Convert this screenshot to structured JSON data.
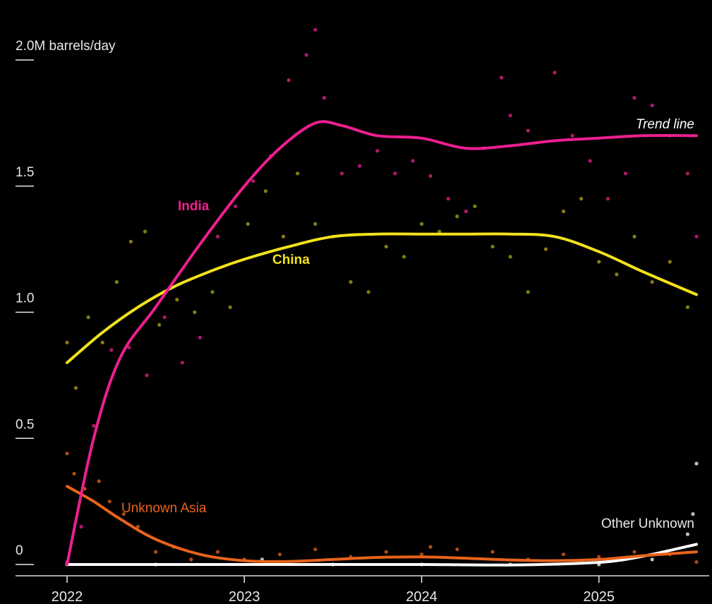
{
  "chart_data": {
    "type": "scatter",
    "y_unit_label": "2.0M barrels/day",
    "y_ticks": [
      {
        "value": 2.0,
        "label": "2.0M barrels/day"
      },
      {
        "value": 1.5,
        "label": "1.5"
      },
      {
        "value": 1.0,
        "label": "1.0"
      },
      {
        "value": 0.5,
        "label": "0.5"
      },
      {
        "value": 0,
        "label": "0"
      }
    ],
    "x_ticks": [
      {
        "value": 2022,
        "label": "2022"
      },
      {
        "value": 2023,
        "label": "2023"
      },
      {
        "value": 2024,
        "label": "2024"
      },
      {
        "value": 2025,
        "label": "2025"
      }
    ],
    "xlim": [
      2022,
      2025.55
    ],
    "ylim": [
      0,
      2.0
    ],
    "grid": false,
    "trend_label": "Trend line",
    "colors": {
      "India": "#ec1f8f",
      "China": "#f2e21b",
      "Unknown Asia": "#e8631b",
      "Other Unknown": "#ffffff"
    },
    "series": [
      {
        "name": "India",
        "trend": [
          {
            "x": 2022.0,
            "y": 0.0
          },
          {
            "x": 2022.15,
            "y": 0.5
          },
          {
            "x": 2022.3,
            "y": 0.82
          },
          {
            "x": 2022.5,
            "y": 1.02
          },
          {
            "x": 2022.75,
            "y": 1.27
          },
          {
            "x": 2023.0,
            "y": 1.5
          },
          {
            "x": 2023.2,
            "y": 1.65
          },
          {
            "x": 2023.4,
            "y": 1.75
          },
          {
            "x": 2023.55,
            "y": 1.74
          },
          {
            "x": 2023.75,
            "y": 1.7
          },
          {
            "x": 2024.0,
            "y": 1.69
          },
          {
            "x": 2024.25,
            "y": 1.65
          },
          {
            "x": 2024.5,
            "y": 1.66
          },
          {
            "x": 2024.75,
            "y": 1.68
          },
          {
            "x": 2025.0,
            "y": 1.69
          },
          {
            "x": 2025.25,
            "y": 1.7
          },
          {
            "x": 2025.55,
            "y": 1.7
          }
        ],
        "points": [
          {
            "x": 2022.0,
            "y": 0.01
          },
          {
            "x": 2022.08,
            "y": 0.15
          },
          {
            "x": 2022.15,
            "y": 0.55
          },
          {
            "x": 2022.25,
            "y": 0.85
          },
          {
            "x": 2022.35,
            "y": 0.86
          },
          {
            "x": 2022.45,
            "y": 0.75
          },
          {
            "x": 2022.55,
            "y": 0.98
          },
          {
            "x": 2022.65,
            "y": 0.8
          },
          {
            "x": 2022.75,
            "y": 0.9
          },
          {
            "x": 2022.85,
            "y": 1.3
          },
          {
            "x": 2022.95,
            "y": 1.42
          },
          {
            "x": 2023.05,
            "y": 1.52
          },
          {
            "x": 2023.15,
            "y": 1.62
          },
          {
            "x": 2023.25,
            "y": 1.92
          },
          {
            "x": 2023.35,
            "y": 2.02
          },
          {
            "x": 2023.4,
            "y": 2.12
          },
          {
            "x": 2023.45,
            "y": 1.85
          },
          {
            "x": 2023.55,
            "y": 1.55
          },
          {
            "x": 2023.65,
            "y": 1.58
          },
          {
            "x": 2023.75,
            "y": 1.64
          },
          {
            "x": 2023.85,
            "y": 1.55
          },
          {
            "x": 2023.95,
            "y": 1.6
          },
          {
            "x": 2024.05,
            "y": 1.54
          },
          {
            "x": 2024.15,
            "y": 1.45
          },
          {
            "x": 2024.25,
            "y": 1.4
          },
          {
            "x": 2024.35,
            "y": 1.65
          },
          {
            "x": 2024.45,
            "y": 1.93
          },
          {
            "x": 2024.5,
            "y": 1.78
          },
          {
            "x": 2024.6,
            "y": 1.72
          },
          {
            "x": 2024.75,
            "y": 1.95
          },
          {
            "x": 2024.85,
            "y": 1.7
          },
          {
            "x": 2024.95,
            "y": 1.6
          },
          {
            "x": 2025.05,
            "y": 1.45
          },
          {
            "x": 2025.15,
            "y": 1.55
          },
          {
            "x": 2025.2,
            "y": 1.85
          },
          {
            "x": 2025.3,
            "y": 1.82
          },
          {
            "x": 2025.4,
            "y": 1.7
          },
          {
            "x": 2025.5,
            "y": 1.55
          },
          {
            "x": 2025.55,
            "y": 1.3
          }
        ]
      },
      {
        "name": "China",
        "trend": [
          {
            "x": 2022.0,
            "y": 0.8
          },
          {
            "x": 2022.2,
            "y": 0.92
          },
          {
            "x": 2022.4,
            "y": 1.02
          },
          {
            "x": 2022.6,
            "y": 1.1
          },
          {
            "x": 2022.8,
            "y": 1.16
          },
          {
            "x": 2023.0,
            "y": 1.21
          },
          {
            "x": 2023.25,
            "y": 1.26
          },
          {
            "x": 2023.5,
            "y": 1.3
          },
          {
            "x": 2023.75,
            "y": 1.31
          },
          {
            "x": 2024.0,
            "y": 1.31
          },
          {
            "x": 2024.25,
            "y": 1.31
          },
          {
            "x": 2024.5,
            "y": 1.31
          },
          {
            "x": 2024.75,
            "y": 1.3
          },
          {
            "x": 2025.0,
            "y": 1.24
          },
          {
            "x": 2025.25,
            "y": 1.16
          },
          {
            "x": 2025.55,
            "y": 1.07
          }
        ],
        "points": [
          {
            "x": 2022.0,
            "y": 0.88
          },
          {
            "x": 2022.05,
            "y": 0.7
          },
          {
            "x": 2022.12,
            "y": 0.98
          },
          {
            "x": 2022.2,
            "y": 0.88
          },
          {
            "x": 2022.28,
            "y": 1.12
          },
          {
            "x": 2022.36,
            "y": 1.28
          },
          {
            "x": 2022.44,
            "y": 1.32
          },
          {
            "x": 2022.52,
            "y": 0.95
          },
          {
            "x": 2022.62,
            "y": 1.05
          },
          {
            "x": 2022.72,
            "y": 1.0
          },
          {
            "x": 2022.82,
            "y": 1.08
          },
          {
            "x": 2022.92,
            "y": 1.02
          },
          {
            "x": 2023.02,
            "y": 1.35
          },
          {
            "x": 2023.12,
            "y": 1.48
          },
          {
            "x": 2023.22,
            "y": 1.3
          },
          {
            "x": 2023.3,
            "y": 1.55
          },
          {
            "x": 2023.4,
            "y": 1.35
          },
          {
            "x": 2023.5,
            "y": 1.3
          },
          {
            "x": 2023.6,
            "y": 1.12
          },
          {
            "x": 2023.7,
            "y": 1.08
          },
          {
            "x": 2023.8,
            "y": 1.26
          },
          {
            "x": 2023.9,
            "y": 1.22
          },
          {
            "x": 2024.0,
            "y": 1.35
          },
          {
            "x": 2024.1,
            "y": 1.32
          },
          {
            "x": 2024.2,
            "y": 1.38
          },
          {
            "x": 2024.3,
            "y": 1.42
          },
          {
            "x": 2024.4,
            "y": 1.26
          },
          {
            "x": 2024.5,
            "y": 1.22
          },
          {
            "x": 2024.6,
            "y": 1.08
          },
          {
            "x": 2024.7,
            "y": 1.25
          },
          {
            "x": 2024.8,
            "y": 1.4
          },
          {
            "x": 2024.9,
            "y": 1.45
          },
          {
            "x": 2025.0,
            "y": 1.2
          },
          {
            "x": 2025.1,
            "y": 1.15
          },
          {
            "x": 2025.2,
            "y": 1.3
          },
          {
            "x": 2025.3,
            "y": 1.12
          },
          {
            "x": 2025.4,
            "y": 1.2
          },
          {
            "x": 2025.5,
            "y": 1.02
          }
        ]
      },
      {
        "name": "Unknown Asia",
        "trend": [
          {
            "x": 2022.0,
            "y": 0.31
          },
          {
            "x": 2022.15,
            "y": 0.25
          },
          {
            "x": 2022.3,
            "y": 0.18
          },
          {
            "x": 2022.5,
            "y": 0.1
          },
          {
            "x": 2022.75,
            "y": 0.04
          },
          {
            "x": 2023.0,
            "y": 0.015
          },
          {
            "x": 2023.25,
            "y": 0.012
          },
          {
            "x": 2023.5,
            "y": 0.02
          },
          {
            "x": 2023.75,
            "y": 0.028
          },
          {
            "x": 2024.0,
            "y": 0.03
          },
          {
            "x": 2024.25,
            "y": 0.025
          },
          {
            "x": 2024.5,
            "y": 0.018
          },
          {
            "x": 2024.75,
            "y": 0.015
          },
          {
            "x": 2025.0,
            "y": 0.02
          },
          {
            "x": 2025.25,
            "y": 0.035
          },
          {
            "x": 2025.55,
            "y": 0.05
          }
        ],
        "points": [
          {
            "x": 2022.0,
            "y": 0.44
          },
          {
            "x": 2022.04,
            "y": 0.36
          },
          {
            "x": 2022.1,
            "y": 0.3
          },
          {
            "x": 2022.18,
            "y": 0.33
          },
          {
            "x": 2022.24,
            "y": 0.25
          },
          {
            "x": 2022.32,
            "y": 0.2
          },
          {
            "x": 2022.4,
            "y": 0.15
          },
          {
            "x": 2022.5,
            "y": 0.05
          },
          {
            "x": 2022.6,
            "y": 0.07
          },
          {
            "x": 2022.7,
            "y": 0.02
          },
          {
            "x": 2022.85,
            "y": 0.05
          },
          {
            "x": 2023.0,
            "y": 0.02
          },
          {
            "x": 2023.2,
            "y": 0.04
          },
          {
            "x": 2023.4,
            "y": 0.06
          },
          {
            "x": 2023.6,
            "y": 0.03
          },
          {
            "x": 2023.8,
            "y": 0.05
          },
          {
            "x": 2024.0,
            "y": 0.04
          },
          {
            "x": 2024.05,
            "y": 0.07
          },
          {
            "x": 2024.2,
            "y": 0.06
          },
          {
            "x": 2024.4,
            "y": 0.05
          },
          {
            "x": 2024.6,
            "y": 0.02
          },
          {
            "x": 2024.8,
            "y": 0.04
          },
          {
            "x": 2025.0,
            "y": 0.03
          },
          {
            "x": 2025.2,
            "y": 0.05
          },
          {
            "x": 2025.4,
            "y": 0.04
          },
          {
            "x": 2025.55,
            "y": 0.01
          }
        ]
      },
      {
        "name": "Other Unknown",
        "trend": [
          {
            "x": 2022.0,
            "y": 0.0
          },
          {
            "x": 2022.5,
            "y": 0.0
          },
          {
            "x": 2023.0,
            "y": 0.0
          },
          {
            "x": 2023.5,
            "y": 0.0
          },
          {
            "x": 2024.0,
            "y": 0.0
          },
          {
            "x": 2024.5,
            "y": -0.002
          },
          {
            "x": 2024.9,
            "y": 0.005
          },
          {
            "x": 2025.1,
            "y": 0.015
          },
          {
            "x": 2025.3,
            "y": 0.04
          },
          {
            "x": 2025.55,
            "y": 0.08
          }
        ],
        "points": [
          {
            "x": 2022.0,
            "y": 0.0
          },
          {
            "x": 2022.5,
            "y": 0.0
          },
          {
            "x": 2023.1,
            "y": 0.02
          },
          {
            "x": 2023.5,
            "y": 0.0
          },
          {
            "x": 2024.0,
            "y": 0.0
          },
          {
            "x": 2024.5,
            "y": 0.0
          },
          {
            "x": 2025.0,
            "y": 0.0
          },
          {
            "x": 2025.3,
            "y": 0.02
          },
          {
            "x": 2025.5,
            "y": 0.12
          },
          {
            "x": 2025.53,
            "y": 0.2
          },
          {
            "x": 2025.55,
            "y": 0.4
          }
        ]
      }
    ]
  }
}
